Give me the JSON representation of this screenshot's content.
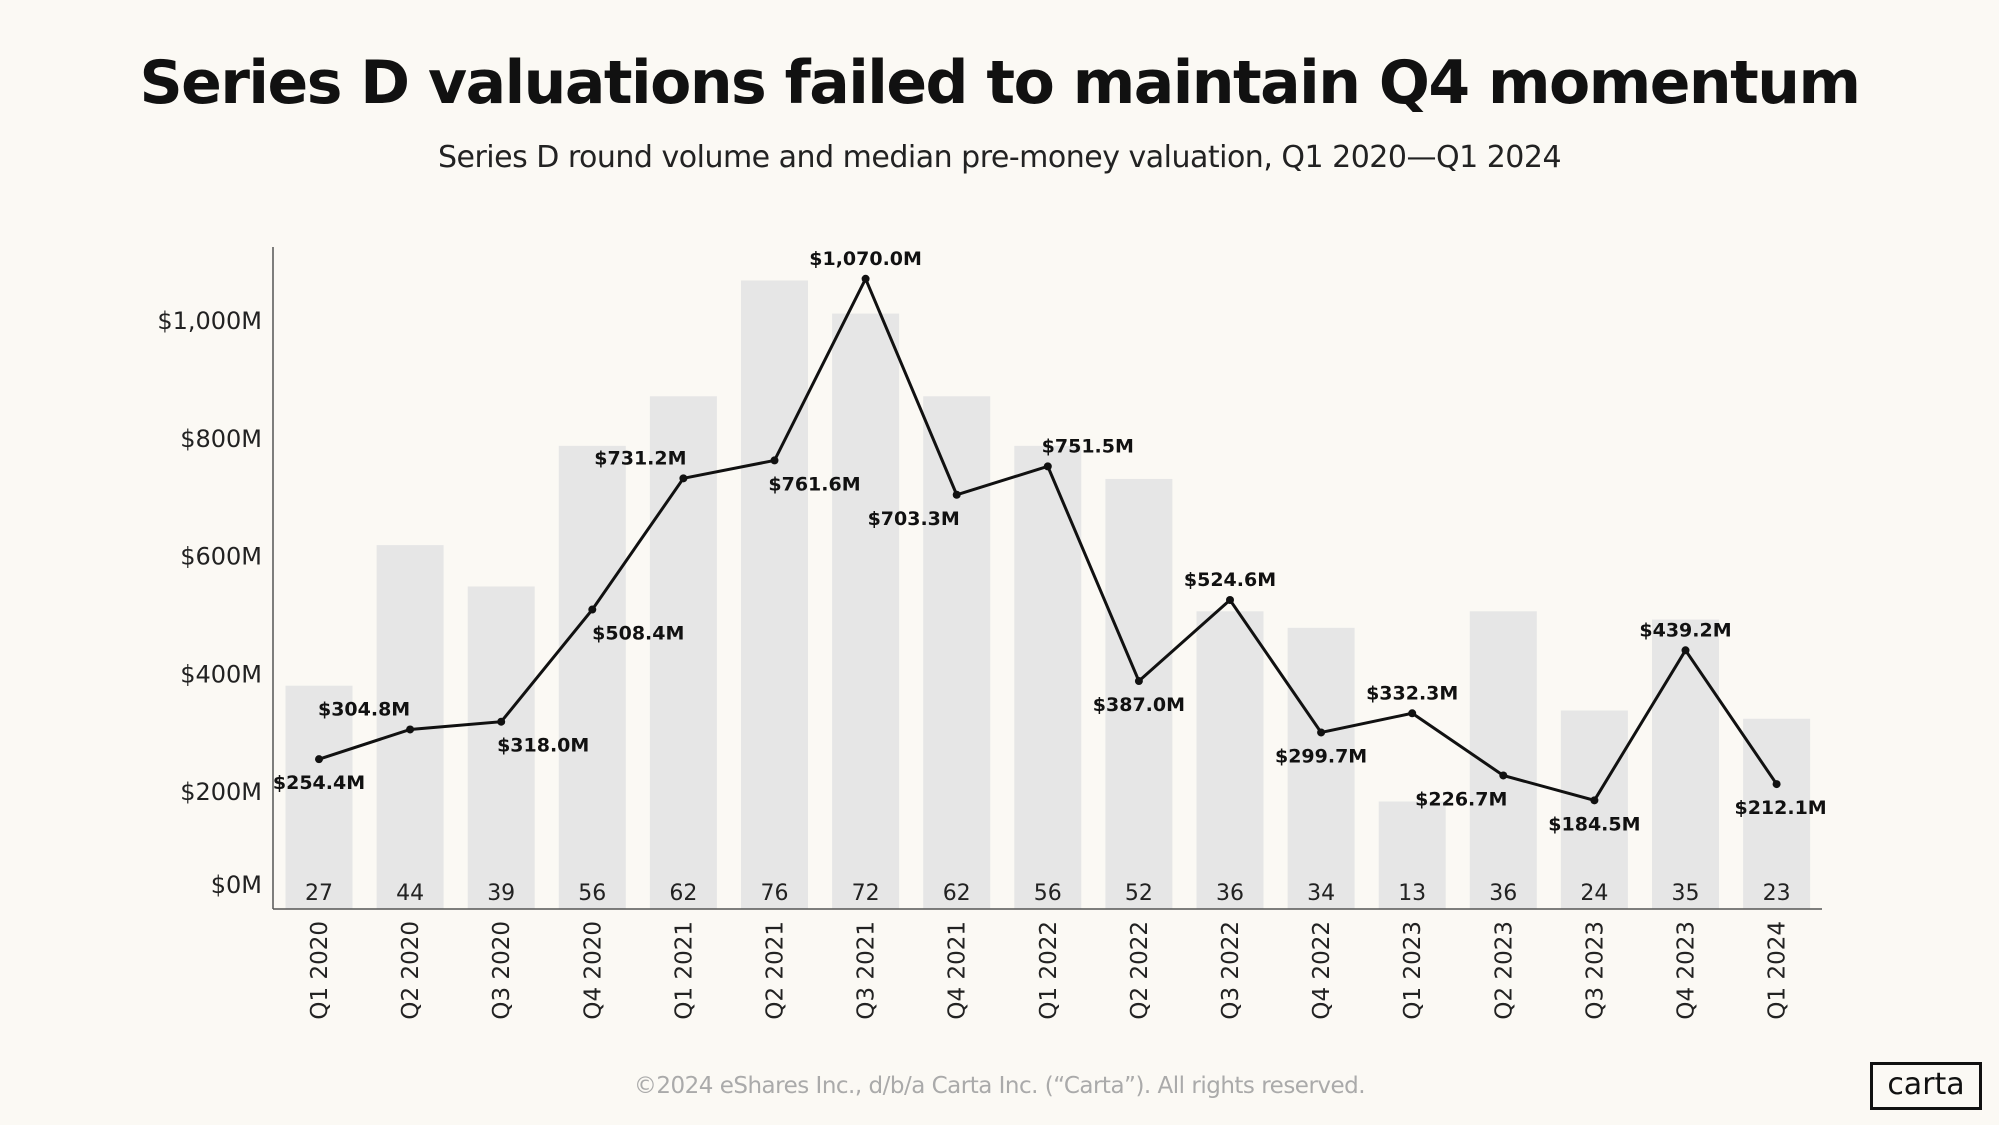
{
  "title": "Series D valuations failed to maintain Q4 momentum",
  "subtitle": "Series D round volume and median pre-money valuation, Q1 2020—Q1 2024",
  "footer": "©2024 eShares Inc., d/b/a Carta Inc. (“Carta”). All rights reserved.",
  "logo": "carta",
  "colors": {
    "background": "#fbf9f4",
    "bars": "#e6e6e6",
    "line": "#111111"
  },
  "chart_data": {
    "type": "bar+line",
    "title": "Series D valuations failed to maintain Q4 momentum",
    "subtitle": "Series D round volume and median pre-money valuation, Q1 2020—Q1 2024",
    "categories": [
      "Q1 2020",
      "Q2 2020",
      "Q3 2020",
      "Q4 2020",
      "Q1 2021",
      "Q2 2021",
      "Q3 2021",
      "Q4 2021",
      "Q1 2022",
      "Q2 2022",
      "Q3 2022",
      "Q4 2022",
      "Q1 2023",
      "Q2 2023",
      "Q3 2023",
      "Q4 2023",
      "Q1 2024"
    ],
    "bar_values": [
      27,
      44,
      39,
      56,
      62,
      76,
      72,
      62,
      56,
      52,
      36,
      34,
      13,
      36,
      24,
      35,
      23
    ],
    "line_values": [
      254.4,
      304.8,
      318.0,
      508.4,
      731.2,
      761.6,
      1070.0,
      703.3,
      751.5,
      387.0,
      524.6,
      299.7,
      332.3,
      226.7,
      184.5,
      439.2,
      212.1
    ],
    "line_labels": [
      "$254.4M",
      "$304.8M",
      "$318.0M",
      "$508.4M",
      "$731.2M",
      "$761.6M",
      "$1,070.0M",
      "$703.3M",
      "$751.5M",
      "$387.0M",
      "$524.6M",
      "$299.7M",
      "$332.3M",
      "$226.7M",
      "$184.5M",
      "$439.2M",
      "$212.1M"
    ],
    "y_ticks": [
      0,
      200,
      400,
      600,
      800,
      1000
    ],
    "y_tick_labels": [
      "$0M",
      "$200M",
      "$400M",
      "$600M",
      "$800M",
      "$1,000M"
    ],
    "ylim": [
      0,
      1100
    ],
    "grid": false,
    "legend": "none"
  }
}
